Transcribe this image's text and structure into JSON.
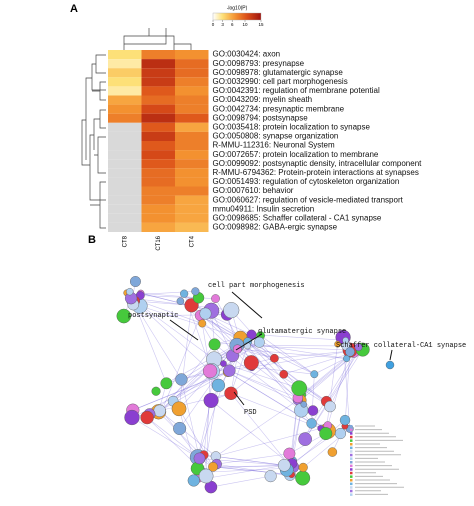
{
  "chart_data": {
    "type": "heatmap",
    "panel_label": "A",
    "colorbar_title": "-log10(P)",
    "colorbar_ticks": [
      0,
      3,
      6,
      10,
      15
    ],
    "colorbar_lim": [
      0,
      15
    ],
    "columns": [
      "CT8",
      "CT16",
      "CT4"
    ],
    "rows": [
      "GO:0030424: axon",
      "GO:0098793: presynapse",
      "GO:0098978: glutamatergic synapse",
      "GO:0032990: cell part morphogenesis",
      "GO:0042391: regulation of membrane potential",
      "GO:0043209: myelin sheath",
      "GO:0042734: presynaptic membrane",
      "GO:0098794: postsynapse",
      "GO:0035418: protein localization to synapse",
      "GO:0050808: synapse organization",
      "R-MMU-112316: Neuronal System",
      "GO:0072657: protein localization to membrane",
      "GO:0099092: postsynaptic density, intracellular component",
      "R-MMU-6794362: Protein-protein interactions at synapses",
      "GO:0051493: regulation of cytoskeleton organization",
      "GO:0007610: behavior",
      "GO:0060627: regulation of vesicle-mediated transport",
      "mmu04911: Insulin secretion",
      "GO:0098685: Schaffer collateral - CA1 synapse",
      "GO:0098982: GABA-ergic synapse"
    ],
    "values": [
      [
        3,
        8,
        7
      ],
      [
        2,
        13,
        9
      ],
      [
        4,
        12,
        9
      ],
      [
        3,
        12,
        8
      ],
      [
        2,
        10,
        7
      ],
      [
        6,
        9,
        8
      ],
      [
        7,
        11,
        8
      ],
      [
        8,
        13,
        10
      ],
      [
        null,
        10,
        6
      ],
      [
        null,
        12,
        8
      ],
      [
        null,
        10,
        8
      ],
      [
        null,
        11,
        7
      ],
      [
        null,
        10,
        8
      ],
      [
        null,
        9,
        7
      ],
      [
        null,
        9,
        7
      ],
      [
        null,
        8,
        8
      ],
      [
        null,
        8,
        6
      ],
      [
        null,
        7,
        6
      ],
      [
        null,
        7,
        6
      ],
      [
        null,
        6,
        5
      ]
    ]
  },
  "network": {
    "panel_label": "B",
    "labels": [
      "cell part morphogenesis",
      "postsynaptic",
      "glutamatergic synapse",
      "Schaffer collateral-CA1 synapse",
      "PSD"
    ]
  }
}
